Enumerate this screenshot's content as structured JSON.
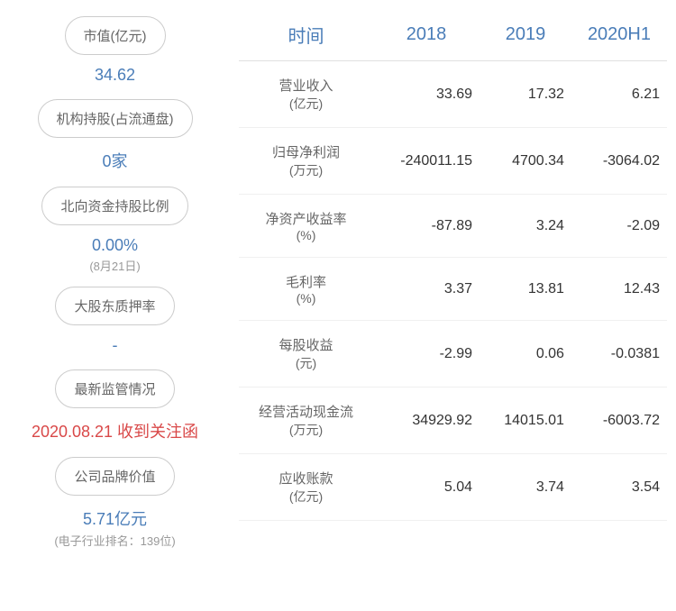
{
  "sidebar": {
    "items": [
      {
        "label": "市值(亿元)",
        "value": "34.62",
        "valueClass": ""
      },
      {
        "label": "机构持股(占流通盘)",
        "value": "0家",
        "valueClass": ""
      },
      {
        "label": "北向资金持股比例",
        "value": "0.00%",
        "subtext": "(8月21日)",
        "valueClass": ""
      },
      {
        "label": "大股东质押率",
        "value": "-",
        "valueClass": "dash"
      },
      {
        "label": "最新监管情况",
        "value": "2020.08.21 收到关注函",
        "valueClass": "red"
      },
      {
        "label": "公司品牌价值",
        "value": "5.71亿元",
        "subtext": "(电子行业排名：139位)",
        "valueClass": ""
      }
    ]
  },
  "table": {
    "headers": [
      "时间",
      "2018",
      "2019",
      "2020H1"
    ],
    "rows": [
      {
        "label": "营业收入",
        "unit": "(亿元)",
        "values": [
          "33.69",
          "17.32",
          "6.21"
        ]
      },
      {
        "label": "归母净利润",
        "unit": "(万元)",
        "values": [
          "-240011.15",
          "4700.34",
          "-3064.02"
        ]
      },
      {
        "label": "净资产收益率",
        "unit": "(%)",
        "values": [
          "-87.89",
          "3.24",
          "-2.09"
        ]
      },
      {
        "label": "毛利率",
        "unit": "(%)",
        "values": [
          "3.37",
          "13.81",
          "12.43"
        ]
      },
      {
        "label": "每股收益",
        "unit": "(元)",
        "values": [
          "-2.99",
          "0.06",
          "-0.0381"
        ]
      },
      {
        "label": "经营活动现金流",
        "unit": "(万元)",
        "values": [
          "34929.92",
          "14015.01",
          "-6003.72"
        ]
      },
      {
        "label": "应收账款",
        "unit": "(亿元)",
        "values": [
          "5.04",
          "3.74",
          "3.54"
        ]
      }
    ]
  }
}
